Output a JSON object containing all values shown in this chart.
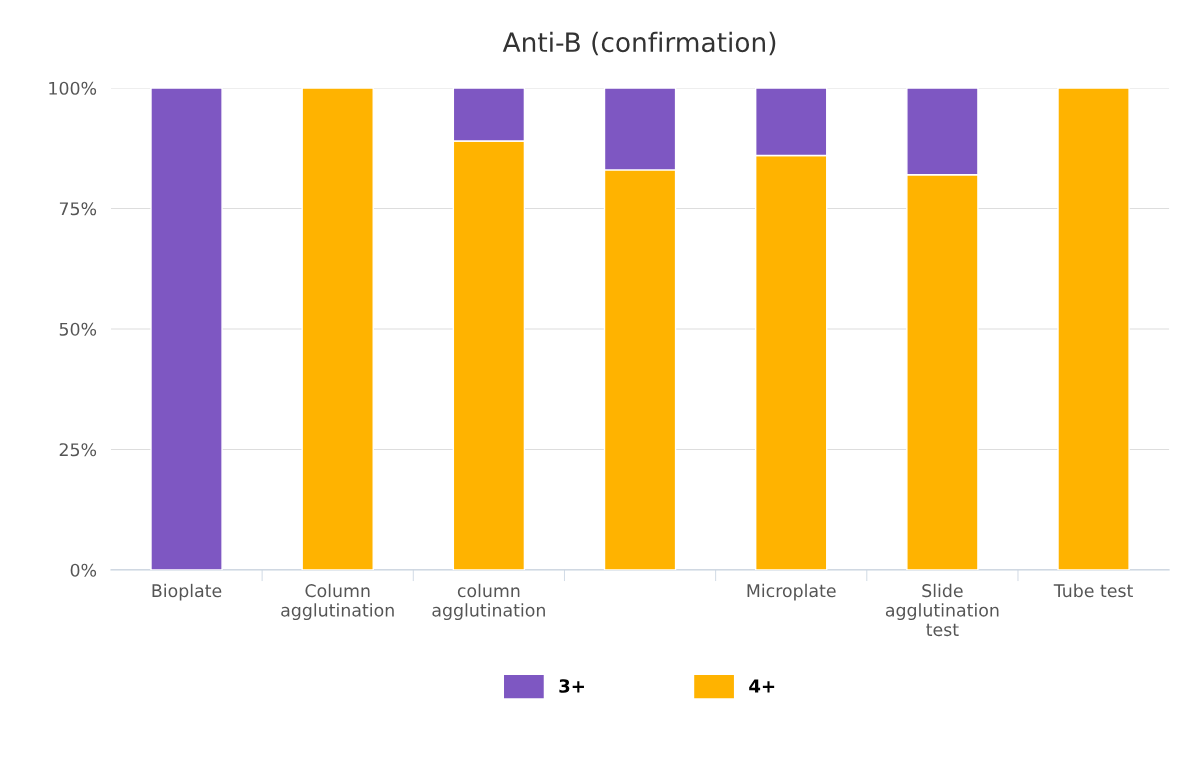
{
  "chart_data": {
    "type": "bar",
    "title": "Anti-B (confirmation)",
    "stacked": true,
    "categories": [
      "Bioplate",
      "Column agglutination",
      "column agglutination",
      null,
      "Microplate",
      "Slide agglutination test",
      "Tube test"
    ],
    "series": [
      {
        "name": "4+",
        "color": "#ffb300",
        "values": [
          0,
          100,
          89,
          83,
          86,
          82,
          100
        ]
      },
      {
        "name": "3+",
        "color": "#7e57c2",
        "values": [
          100,
          0,
          11,
          17,
          14,
          18,
          0
        ]
      }
    ],
    "ylim": [
      0,
      100
    ],
    "yticks": [
      {
        "value": 0,
        "label": "0%"
      },
      {
        "value": 25,
        "label": "25%"
      },
      {
        "value": 50,
        "label": "50%"
      },
      {
        "value": 75,
        "label": "75%"
      },
      {
        "value": 100,
        "label": "100%"
      }
    ],
    "grid": "y",
    "legend": "bottom"
  }
}
